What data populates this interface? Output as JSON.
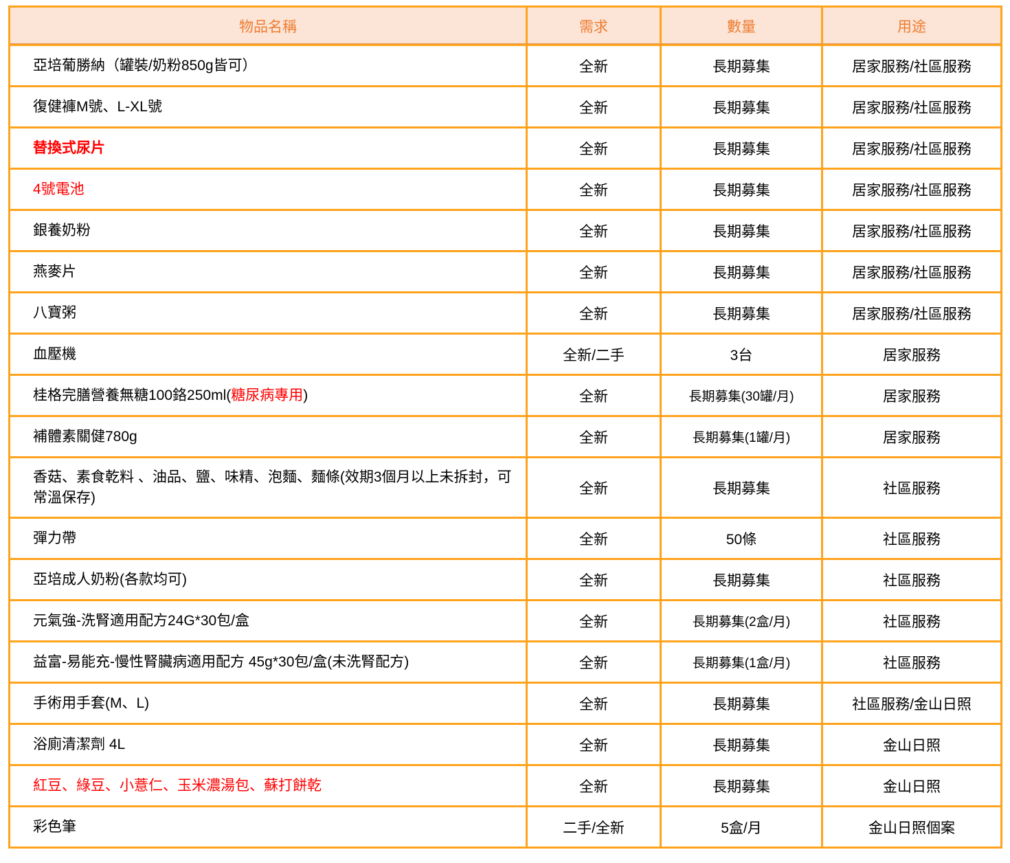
{
  "colors": {
    "border": "#FFA31C",
    "header_bg": "#FCE4D6",
    "header_text": "#ED7D31",
    "red_text": "#FF0000",
    "body_text": "#000000",
    "row_bg": "#FFFFFF"
  },
  "table": {
    "headers": [
      "物品名稱",
      "需求",
      "數量",
      "用途"
    ],
    "rows": [
      {
        "item": [
          {
            "text": "亞培葡勝納（罐裝/奶粉850g皆可）",
            "color": "black"
          }
        ],
        "bold": false,
        "demand": "全新",
        "qty": "長期募集",
        "use": "居家服務/社區服務"
      },
      {
        "item": [
          {
            "text": "復健褲M號、L-XL號",
            "color": "black"
          }
        ],
        "bold": false,
        "demand": "全新",
        "qty": "長期募集",
        "use": "居家服務/社區服務"
      },
      {
        "item": [
          {
            "text": "替換式尿片",
            "color": "red"
          }
        ],
        "bold": true,
        "demand": "全新",
        "qty": "長期募集",
        "use": "居家服務/社區服務"
      },
      {
        "item": [
          {
            "text": "4號電池",
            "color": "red"
          }
        ],
        "bold": false,
        "demand": "全新",
        "qty": "長期募集",
        "use": "居家服務/社區服務"
      },
      {
        "item": [
          {
            "text": "銀養奶粉",
            "color": "black"
          }
        ],
        "bold": false,
        "demand": "全新",
        "qty": "長期募集",
        "use": "居家服務/社區服務"
      },
      {
        "item": [
          {
            "text": "燕麥片",
            "color": "black"
          }
        ],
        "bold": false,
        "demand": "全新",
        "qty": "長期募集",
        "use": "居家服務/社區服務"
      },
      {
        "item": [
          {
            "text": "八寶粥",
            "color": "black"
          }
        ],
        "bold": false,
        "demand": "全新",
        "qty": "長期募集",
        "use": "居家服務/社區服務"
      },
      {
        "item": [
          {
            "text": "血壓機",
            "color": "black"
          }
        ],
        "bold": false,
        "demand": "全新/二手",
        "qty": "3台",
        "use": "居家服務"
      },
      {
        "item": [
          {
            "text": "桂格完膳營養無糖100鉻250ml(",
            "color": "black"
          },
          {
            "text": "糖尿病專用",
            "color": "red"
          },
          {
            "text": ")",
            "color": "black"
          }
        ],
        "bold": false,
        "demand": "全新",
        "qty": "長期募集(30罐/月)",
        "use": "居家服務"
      },
      {
        "item": [
          {
            "text": "補體素關健780g",
            "color": "black"
          }
        ],
        "bold": false,
        "demand": "全新",
        "qty": "長期募集(1罐/月)",
        "use": "居家服務"
      },
      {
        "item": [
          {
            "text": "香菇、素食乾料 、油品、鹽、味精、泡麵、麵條(效期3個月以上未拆封，可常溫保存)",
            "color": "black"
          }
        ],
        "bold": false,
        "demand": "全新",
        "qty": "長期募集",
        "use": "社區服務",
        "tall": true
      },
      {
        "item": [
          {
            "text": "彈力帶",
            "color": "black"
          }
        ],
        "bold": false,
        "demand": "全新",
        "qty": "50條",
        "use": "社區服務"
      },
      {
        "item": [
          {
            "text": "亞培成人奶粉(各款均可)",
            "color": "black"
          }
        ],
        "bold": false,
        "demand": "全新",
        "qty": "長期募集",
        "use": "社區服務"
      },
      {
        "item": [
          {
            "text": "元氣強-洗腎適用配方24G*30包/盒",
            "color": "black"
          }
        ],
        "bold": false,
        "demand": "全新",
        "qty": "長期募集(2盒/月)",
        "use": "社區服務"
      },
      {
        "item": [
          {
            "text": "益富-易能充-慢性腎臟病適用配方 45g*30包/盒(未洗腎配方)",
            "color": "black"
          }
        ],
        "bold": false,
        "demand": "全新",
        "qty": "長期募集(1盒/月)",
        "use": "社區服務"
      },
      {
        "item": [
          {
            "text": "手術用手套(M、L)",
            "color": "black"
          }
        ],
        "bold": false,
        "demand": "全新",
        "qty": "長期募集",
        "use": "社區服務/金山日照"
      },
      {
        "item": [
          {
            "text": "浴廁清潔劑 4L",
            "color": "black"
          }
        ],
        "bold": false,
        "demand": "全新",
        "qty": "長期募集",
        "use": "金山日照"
      },
      {
        "item": [
          {
            "text": "紅豆、綠豆、小薏仁、玉米濃湯包、蘇打餅乾",
            "color": "red"
          }
        ],
        "bold": false,
        "demand": "全新",
        "qty": "長期募集",
        "use": "金山日照"
      },
      {
        "item": [
          {
            "text": "彩色筆",
            "color": "black"
          }
        ],
        "bold": false,
        "demand": "二手/全新",
        "qty": "5盒/月",
        "use": "金山日照個案"
      }
    ]
  }
}
